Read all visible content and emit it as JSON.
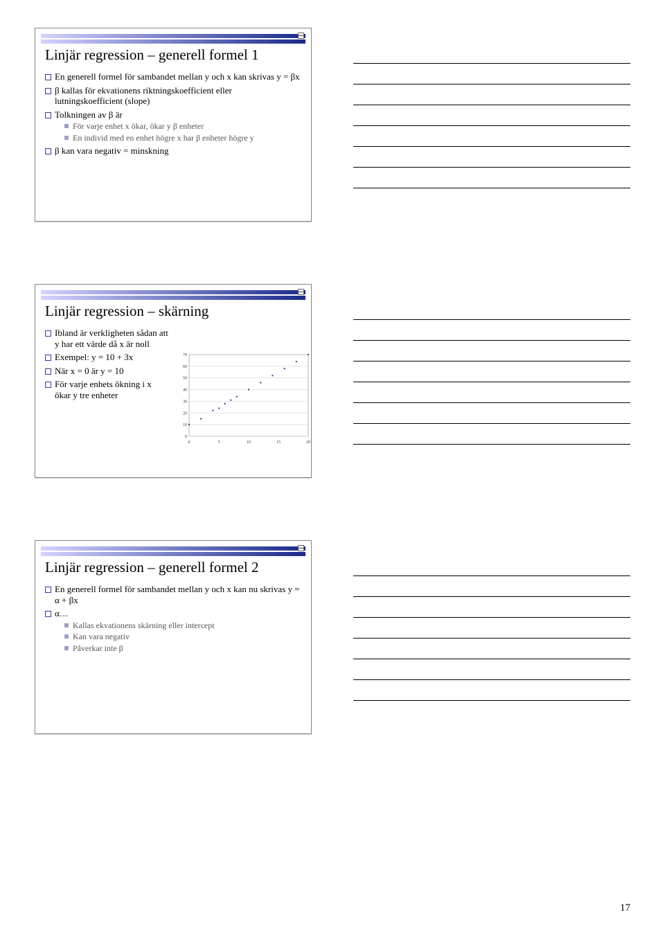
{
  "page": {
    "number": "17"
  },
  "notes": {
    "line_count": 7
  },
  "slide1": {
    "title": "Linjär regression – generell formel 1",
    "items": [
      {
        "text": "En generell formel för sambandet mellan y och x kan skrivas y = βx"
      },
      {
        "text": "β kallas för ekvationens riktningskoefficient eller lutningskoefficient (slope)"
      },
      {
        "text": "Tolkningen av β är",
        "sub": [
          "För varje enhet x ökar, ökar y β enheter",
          "En individ med en enhet högre x har β enheter högre y"
        ]
      },
      {
        "text": "β kan vara negativ = minskning"
      }
    ]
  },
  "slide2": {
    "title": "Linjär regression – skärning",
    "items": [
      {
        "text": "Ibland är verkligheten sådan att y har ett värde då x är noll"
      },
      {
        "text": "Exempel: y = 10 + 3x"
      },
      {
        "text": "När x = 0 är y = 10"
      },
      {
        "text": "För varje enhets ökning i x ökar y tre enheter"
      }
    ],
    "chart": {
      "type": "scatter",
      "xlim": [
        0,
        20
      ],
      "ylim": [
        0,
        70
      ],
      "xticks": [
        0,
        5,
        10,
        15,
        20
      ],
      "yticks": [
        0,
        10,
        20,
        30,
        40,
        50,
        60,
        70
      ],
      "grid_color": "#cccccc",
      "border_color": "#888888",
      "bg_color": "#ffffff",
      "marker_color": "#2a3b8f",
      "marker_size": 2,
      "points": [
        [
          0,
          10
        ],
        [
          2,
          15
        ],
        [
          4,
          22
        ],
        [
          5,
          24
        ],
        [
          6,
          28
        ],
        [
          7,
          31
        ],
        [
          8,
          34
        ],
        [
          10,
          40
        ],
        [
          12,
          46
        ],
        [
          14,
          52
        ],
        [
          16,
          58
        ],
        [
          18,
          64
        ],
        [
          20,
          70
        ]
      ],
      "tick_fontsize": 6
    }
  },
  "slide3": {
    "title": "Linjär regression – generell formel 2",
    "items": [
      {
        "text": "En generell formel för sambandet mellan y och x kan nu skrivas y = α + βx"
      },
      {
        "text": "α…",
        "sub": [
          "Kallas ekvationens skärning eller intercept",
          "Kan vara negativ",
          "Påverkar inte β"
        ]
      }
    ]
  }
}
